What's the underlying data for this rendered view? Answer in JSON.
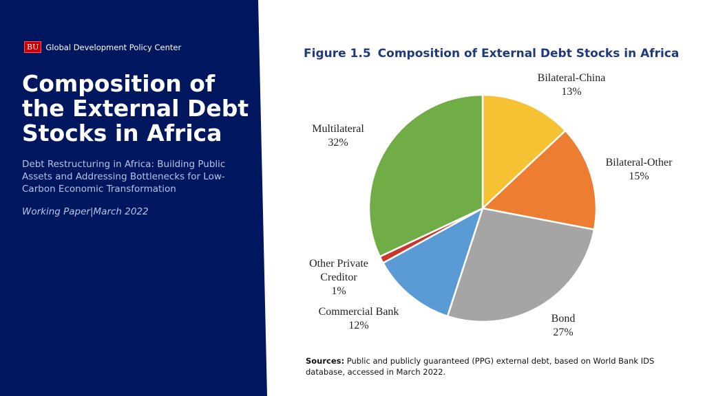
{
  "header": {
    "logo_text": "BU",
    "org": "Global Development Policy Center"
  },
  "title": "Composition of the External Debt Stocks in Africa",
  "subtitle": "Debt Restructuring in Africa: Building Public Assets and Addressing Bottlenecks for Low-Carbon Economic Transformation",
  "meta": "Working Paper|March 2022",
  "chart_data": {
    "type": "pie",
    "figure_number": "Figure 1.5",
    "title": "Composition of External Debt Stocks in Africa",
    "slices": [
      {
        "label": "Bilateral-China",
        "value": 13,
        "display": "13%",
        "color": "#F5C233"
      },
      {
        "label": "Bilateral-Other",
        "value": 15,
        "display": "15%",
        "color": "#ED7D31"
      },
      {
        "label": "Bond",
        "value": 27,
        "display": "27%",
        "color": "#A5A5A5"
      },
      {
        "label": "Commercial Bank",
        "value": 12,
        "display": "12%",
        "color": "#5B9BD5"
      },
      {
        "label": "Other Private Creditor",
        "value": 1,
        "display": "1%",
        "color": "#C8372D"
      },
      {
        "label": "Multilateral",
        "value": 32,
        "display": "32%",
        "color": "#70AD47"
      }
    ]
  },
  "sources": {
    "label": "Sources:",
    "text": " Public and publicly guaranteed (PPG) external debt, based on World Bank IDS database, accessed in March 2022."
  }
}
